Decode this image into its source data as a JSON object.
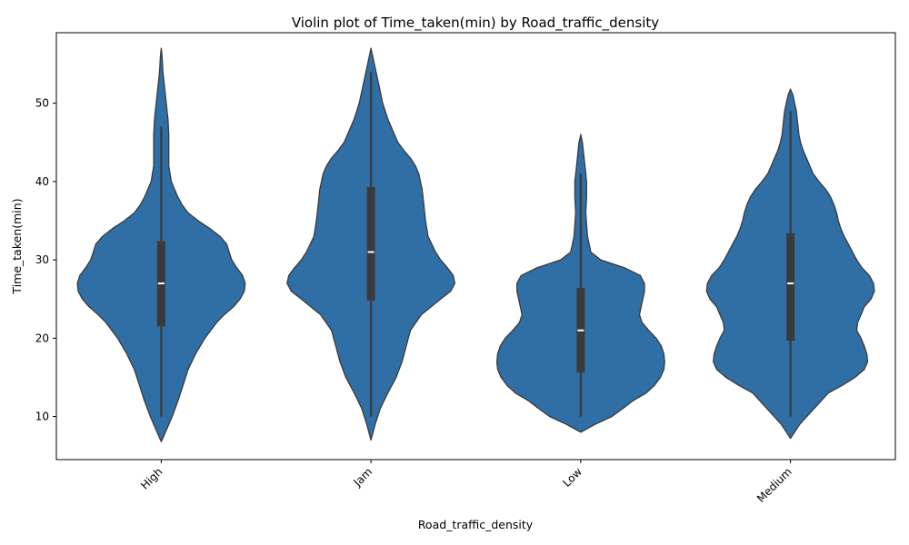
{
  "chart_data": {
    "type": "violin",
    "title": "Violin plot of Time_taken(min) by Road_traffic_density",
    "xlabel": "Road_traffic_density",
    "ylabel": "Time_taken(min)",
    "categories": [
      "High",
      "Jam",
      "Low",
      "Medium"
    ],
    "y_ticks": [
      10,
      20,
      30,
      40,
      50
    ],
    "ylim": [
      4.5,
      59
    ],
    "x_tick_rotation_deg": 45,
    "grid": false,
    "colors": {
      "violin_fill": "#2f6fa6",
      "violin_edge": "#3a3a3a",
      "box": "#3a3a3a",
      "median": "#ffffff"
    },
    "violins": [
      {
        "category": "High",
        "min": 10,
        "q1": 21.5,
        "median": 27,
        "q3": 32.4,
        "max": 47,
        "extent": [
          6.8,
          57
        ],
        "density": [
          [
            6.8,
            0.0
          ],
          [
            8,
            0.05
          ],
          [
            9,
            0.09
          ],
          [
            10,
            0.13
          ],
          [
            12,
            0.2
          ],
          [
            14,
            0.26
          ],
          [
            16,
            0.32
          ],
          [
            18,
            0.41
          ],
          [
            20,
            0.52
          ],
          [
            22,
            0.66
          ],
          [
            23,
            0.75
          ],
          [
            24,
            0.86
          ],
          [
            25,
            0.94
          ],
          [
            26,
            0.99
          ],
          [
            27,
            1.0
          ],
          [
            28,
            0.97
          ],
          [
            29,
            0.9
          ],
          [
            30,
            0.84
          ],
          [
            31,
            0.81
          ],
          [
            32,
            0.78
          ],
          [
            33,
            0.7
          ],
          [
            34,
            0.58
          ],
          [
            35,
            0.44
          ],
          [
            36,
            0.32
          ],
          [
            37,
            0.25
          ],
          [
            38,
            0.2
          ],
          [
            39,
            0.16
          ],
          [
            40,
            0.12
          ],
          [
            42,
            0.09
          ],
          [
            44,
            0.09
          ],
          [
            46,
            0.09
          ],
          [
            48,
            0.08
          ],
          [
            50,
            0.06
          ],
          [
            52,
            0.04
          ],
          [
            54,
            0.02
          ],
          [
            56,
            0.01
          ],
          [
            57,
            0.0
          ]
        ]
      },
      {
        "category": "Jam",
        "min": 10,
        "q1": 24.8,
        "median": 31,
        "q3": 39.3,
        "max": 54,
        "extent": [
          7,
          57
        ],
        "density": [
          [
            7,
            0.0
          ],
          [
            9,
            0.05
          ],
          [
            11,
            0.11
          ],
          [
            13,
            0.2
          ],
          [
            15,
            0.3
          ],
          [
            17,
            0.37
          ],
          [
            19,
            0.42
          ],
          [
            21,
            0.47
          ],
          [
            23,
            0.6
          ],
          [
            25,
            0.83
          ],
          [
            26,
            0.95
          ],
          [
            27,
            1.0
          ],
          [
            28,
            0.98
          ],
          [
            29,
            0.91
          ],
          [
            30,
            0.83
          ],
          [
            31,
            0.77
          ],
          [
            33,
            0.68
          ],
          [
            35,
            0.65
          ],
          [
            37,
            0.63
          ],
          [
            39,
            0.61
          ],
          [
            41,
            0.57
          ],
          [
            42,
            0.53
          ],
          [
            43,
            0.47
          ],
          [
            44,
            0.39
          ],
          [
            45,
            0.32
          ],
          [
            46,
            0.28
          ],
          [
            47,
            0.24
          ],
          [
            48,
            0.2
          ],
          [
            50,
            0.14
          ],
          [
            52,
            0.1
          ],
          [
            54,
            0.06
          ],
          [
            56,
            0.02
          ],
          [
            57,
            0.0
          ]
        ]
      },
      {
        "category": "Low",
        "min": 10,
        "q1": 15.6,
        "median": 21,
        "q3": 26.4,
        "max": 41,
        "extent": [
          8,
          46
        ],
        "density": [
          [
            8,
            0.0
          ],
          [
            9,
            0.17
          ],
          [
            10,
            0.37
          ],
          [
            11,
            0.5
          ],
          [
            12,
            0.62
          ],
          [
            13,
            0.78
          ],
          [
            14,
            0.88
          ],
          [
            15,
            0.95
          ],
          [
            16,
            0.99
          ],
          [
            17,
            1.0
          ],
          [
            18,
            0.99
          ],
          [
            19,
            0.96
          ],
          [
            20,
            0.9
          ],
          [
            21,
            0.81
          ],
          [
            22,
            0.73
          ],
          [
            23,
            0.7
          ],
          [
            24,
            0.72
          ],
          [
            25,
            0.74
          ],
          [
            26,
            0.76
          ],
          [
            27,
            0.76
          ],
          [
            28,
            0.71
          ],
          [
            29,
            0.52
          ],
          [
            30,
            0.24
          ],
          [
            31,
            0.12
          ],
          [
            33,
            0.08
          ],
          [
            36,
            0.06
          ],
          [
            38,
            0.07
          ],
          [
            40,
            0.07
          ],
          [
            42,
            0.05
          ],
          [
            43,
            0.04
          ],
          [
            44,
            0.03
          ],
          [
            45,
            0.02
          ],
          [
            46,
            0.0
          ]
        ]
      },
      {
        "category": "Medium",
        "min": 10,
        "q1": 19.7,
        "median": 27,
        "q3": 33.4,
        "max": 49,
        "extent": [
          7.2,
          51.8
        ],
        "density": [
          [
            7.2,
            0.0
          ],
          [
            9,
            0.11
          ],
          [
            11,
            0.28
          ],
          [
            13,
            0.45
          ],
          [
            14,
            0.62
          ],
          [
            15,
            0.77
          ],
          [
            16,
            0.88
          ],
          [
            17,
            0.92
          ],
          [
            18,
            0.91
          ],
          [
            19,
            0.88
          ],
          [
            20,
            0.84
          ],
          [
            21,
            0.79
          ],
          [
            22,
            0.8
          ],
          [
            23,
            0.84
          ],
          [
            24,
            0.88
          ],
          [
            25,
            0.96
          ],
          [
            26,
            1.0
          ],
          [
            27,
            0.99
          ],
          [
            28,
            0.94
          ],
          [
            29,
            0.85
          ],
          [
            30,
            0.79
          ],
          [
            31,
            0.74
          ],
          [
            32,
            0.69
          ],
          [
            33,
            0.64
          ],
          [
            34,
            0.6
          ],
          [
            35,
            0.57
          ],
          [
            36,
            0.55
          ],
          [
            37,
            0.52
          ],
          [
            38,
            0.48
          ],
          [
            39,
            0.42
          ],
          [
            40,
            0.34
          ],
          [
            41,
            0.27
          ],
          [
            42,
            0.23
          ],
          [
            43,
            0.19
          ],
          [
            44,
            0.15
          ],
          [
            45,
            0.12
          ],
          [
            46,
            0.1
          ],
          [
            48,
            0.08
          ],
          [
            49,
            0.07
          ],
          [
            50,
            0.05
          ],
          [
            51,
            0.03
          ],
          [
            51.8,
            0.0
          ]
        ]
      }
    ]
  }
}
